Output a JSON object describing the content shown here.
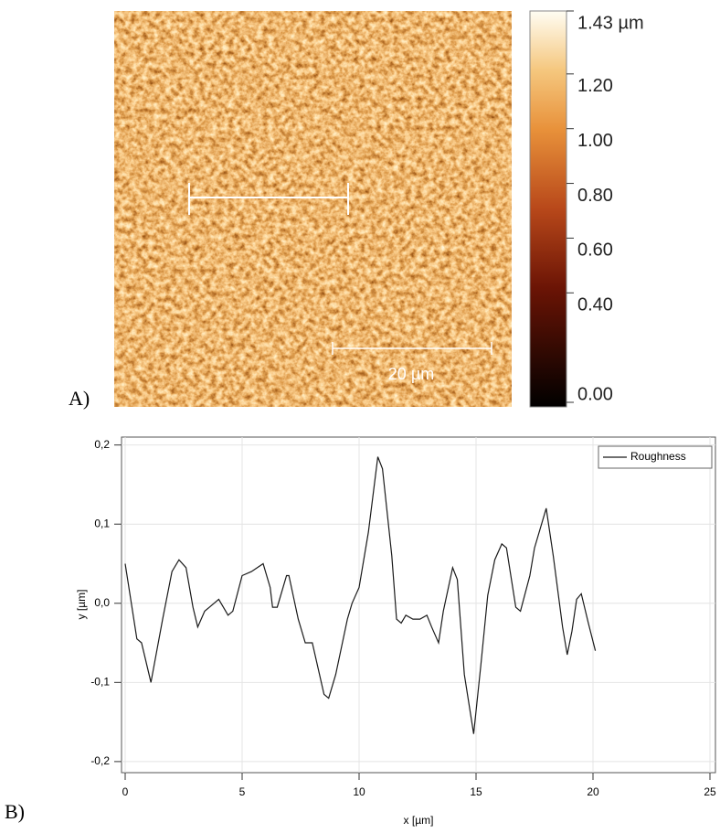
{
  "chart_data": [
    {
      "type": "image",
      "panel_label": "A)",
      "scale_bar_label": "20 µm",
      "ylim": [
        0,
        1.43
      ],
      "yticks": [
        {
          "value": 1.43,
          "label": "1.43 µm"
        },
        {
          "value": 1.2,
          "label": "1.20"
        },
        {
          "value": 1.0,
          "label": "1.00"
        },
        {
          "value": 0.8,
          "label": "0.80"
        },
        {
          "value": 0.6,
          "label": "0.60"
        },
        {
          "value": 0.4,
          "label": "0.40"
        },
        {
          "value": 0,
          "label": "0.00"
        }
      ]
    },
    {
      "type": "line",
      "panel_label": "B)",
      "x_label": "x [µm]",
      "y_label": "y [µm]",
      "xlim": [
        0,
        25
      ],
      "ylim": [
        -0.214,
        0.21
      ],
      "xticks": [
        0,
        5,
        10,
        15,
        20,
        25
      ],
      "yticks": [
        {
          "value": -0.2,
          "label": "-0,2"
        },
        {
          "value": -0.1,
          "label": "-0,1"
        },
        {
          "value": 0,
          "label": "0,0"
        },
        {
          "value": 0.1,
          "label": "0,1"
        },
        {
          "value": 0.2,
          "label": "0,2"
        }
      ],
      "grid": true,
      "legend": "upper right",
      "x": [
        0,
        0.5,
        0.7,
        1.1,
        1.6,
        2.0,
        2.3,
        2.6,
        2.9,
        3.1,
        3.4,
        3.6,
        4.0,
        4.4,
        4.6,
        5.0,
        5.4,
        5.9,
        6.2,
        6.3,
        6.5,
        6.9,
        7.0,
        7.4,
        7.7,
        8.0,
        8.5,
        8.7,
        9.0,
        9.5,
        9.7,
        10.0,
        10.4,
        10.8,
        11.0,
        11.4,
        11.6,
        11.8,
        12.0,
        12.3,
        12.6,
        12.9,
        13.1,
        13.4,
        13.6,
        14.0,
        14.2,
        14.5,
        14.9,
        15.2,
        15.5,
        15.8,
        16.1,
        16.3,
        16.7,
        16.9,
        17.3,
        17.5,
        18.0,
        18.3,
        18.7,
        18.9,
        19.1,
        19.3,
        19.5,
        19.8,
        20.1
      ],
      "series": [
        {
          "name": "Roughness",
          "color": "#1a1a1a",
          "values": [
            0.05,
            -0.045,
            -0.05,
            -0.1,
            -0.02,
            0.04,
            0.055,
            0.045,
            -0.005,
            -0.03,
            -0.01,
            -0.005,
            0.005,
            -0.015,
            -0.01,
            0.035,
            0.04,
            0.05,
            0.02,
            -0.005,
            -0.005,
            0.035,
            0.035,
            -0.02,
            -0.05,
            -0.05,
            -0.115,
            -0.12,
            -0.09,
            -0.02,
            0.0,
            0.02,
            0.09,
            0.185,
            0.17,
            0.06,
            -0.02,
            -0.025,
            -0.015,
            -0.02,
            -0.02,
            -0.015,
            -0.03,
            -0.05,
            -0.01,
            0.045,
            0.03,
            -0.09,
            -0.165,
            -0.08,
            0.01,
            0.055,
            0.075,
            0.07,
            -0.005,
            -0.01,
            0.035,
            0.07,
            0.12,
            0.06,
            -0.03,
            -0.065,
            -0.035,
            0.005,
            0.012,
            -0.025,
            -0.06
          ]
        }
      ]
    }
  ]
}
